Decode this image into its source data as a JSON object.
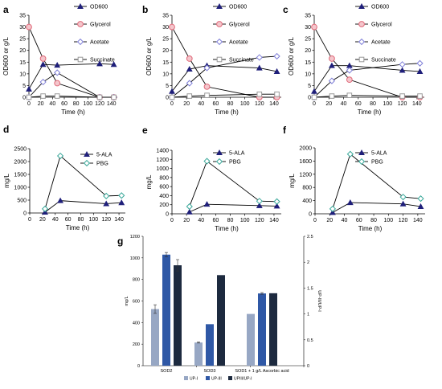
{
  "panel_letters": [
    "a",
    "b",
    "c",
    "d",
    "e",
    "f",
    "g"
  ],
  "colors": {
    "od600": "#1f1f7a",
    "glycerol": "#e06a7a",
    "acetate": "#7f7fd8",
    "succinate": "#9a9a9a",
    "ala": "#1f1f7a",
    "pbg": "#3aa89a",
    "up1": "#97a7c4",
    "up3": "#2f58a6",
    "ratio": "#1d2a3f"
  },
  "chart_data": [
    {
      "id": "a",
      "type": "line",
      "xlabel": "Time (h)",
      "ylabel": "OD600 or g/L",
      "xlim": [
        0,
        150
      ],
      "ylim": [
        0,
        35
      ],
      "xticks": [
        0,
        20,
        40,
        60,
        80,
        100,
        120,
        140
      ],
      "yticks": [
        0,
        5,
        10,
        15,
        20,
        25,
        30,
        35
      ],
      "legend": "right",
      "series": [
        {
          "name": "OD600",
          "marker": "triangle",
          "color_key": "od600",
          "x": [
            0,
            24,
            48,
            120,
            144
          ],
          "y": [
            3.5,
            14,
            13.7,
            14.3,
            14
          ]
        },
        {
          "name": "Glycerol",
          "marker": "circle",
          "color_key": "glycerol",
          "x": [
            0,
            24,
            48,
            120,
            144
          ],
          "y": [
            30,
            16.5,
            6,
            0,
            0
          ]
        },
        {
          "name": "Acetate",
          "marker": "diamond",
          "color_key": "acetate",
          "x": [
            0,
            24,
            48,
            120,
            144
          ],
          "y": [
            0,
            6.5,
            10.5,
            0,
            0
          ]
        },
        {
          "name": "Succinate",
          "marker": "square",
          "color_key": "succinate",
          "x": [
            0,
            24,
            48,
            120,
            144
          ],
          "y": [
            0,
            0.5,
            0.5,
            0,
            0
          ]
        }
      ]
    },
    {
      "id": "b",
      "type": "line",
      "xlabel": "Time (h)",
      "ylabel": "OD600 or g/L",
      "xlim": [
        0,
        150
      ],
      "ylim": [
        0,
        35
      ],
      "xticks": [
        0,
        20,
        40,
        60,
        80,
        100,
        120,
        140
      ],
      "yticks": [
        0,
        5,
        10,
        15,
        20,
        25,
        30,
        35
      ],
      "legend": "right",
      "series": [
        {
          "name": "OD600",
          "marker": "triangle",
          "color_key": "od600",
          "x": [
            0,
            24,
            48,
            120,
            144
          ],
          "y": [
            2.5,
            12,
            13.5,
            12.5,
            11
          ]
        },
        {
          "name": "Glycerol",
          "marker": "circle",
          "color_key": "glycerol",
          "x": [
            0,
            24,
            48,
            120,
            144
          ],
          "y": [
            30,
            16.5,
            4.5,
            0,
            0
          ]
        },
        {
          "name": "Acetate",
          "marker": "diamond",
          "color_key": "acetate",
          "x": [
            0,
            24,
            48,
            120,
            144
          ],
          "y": [
            0,
            6,
            12.5,
            17,
            17.5
          ]
        },
        {
          "name": "Succinate",
          "marker": "square",
          "color_key": "succinate",
          "x": [
            0,
            24,
            48,
            120,
            144
          ],
          "y": [
            0,
            0.5,
            0.8,
            1.3,
            1.3
          ]
        }
      ]
    },
    {
      "id": "c",
      "type": "line",
      "xlabel": "Time (h)",
      "ylabel": "OD600 or g/L",
      "xlim": [
        0,
        150
      ],
      "ylim": [
        0,
        35
      ],
      "xticks": [
        0,
        20,
        40,
        60,
        80,
        100,
        120,
        140
      ],
      "yticks": [
        0,
        5,
        10,
        15,
        20,
        25,
        30,
        35
      ],
      "legend": "right",
      "series": [
        {
          "name": "OD600",
          "marker": "triangle",
          "color_key": "od600",
          "x": [
            0,
            24,
            48,
            120,
            144
          ],
          "y": [
            2.5,
            13.5,
            13.5,
            11.5,
            11
          ]
        },
        {
          "name": "Glycerol",
          "marker": "circle",
          "color_key": "glycerol",
          "x": [
            0,
            24,
            48,
            120,
            144
          ],
          "y": [
            30,
            16.5,
            7.5,
            0,
            0
          ]
        },
        {
          "name": "Acetate",
          "marker": "diamond",
          "color_key": "acetate",
          "x": [
            0,
            24,
            48,
            120,
            144
          ],
          "y": [
            0,
            7,
            11.5,
            14,
            14.5
          ]
        },
        {
          "name": "Succinate",
          "marker": "square",
          "color_key": "succinate",
          "x": [
            0,
            24,
            48,
            120,
            144
          ],
          "y": [
            0,
            0.5,
            0.8,
            0.5,
            0.5
          ]
        }
      ]
    },
    {
      "id": "d",
      "type": "line",
      "xlabel": "Time (h)",
      "ylabel": "mg/L",
      "xlim": [
        0,
        150
      ],
      "ylim": [
        0,
        2500
      ],
      "xticks": [
        0,
        20,
        40,
        60,
        80,
        100,
        120,
        140
      ],
      "yticks": [
        0,
        500,
        1000,
        1500,
        2000,
        2500
      ],
      "legend": "top-right",
      "series": [
        {
          "name": "5-ALA",
          "marker": "triangle",
          "color_key": "ala",
          "x": [
            24,
            48,
            120,
            144
          ],
          "y": [
            30,
            480,
            360,
            400
          ]
        },
        {
          "name": "PBG",
          "marker": "diamond",
          "color_key": "pbg",
          "x": [
            24,
            48,
            120,
            144
          ],
          "y": [
            160,
            2220,
            660,
            680
          ]
        }
      ]
    },
    {
      "id": "e",
      "type": "line",
      "xlabel": "Time (h)",
      "ylabel": "mg/L",
      "xlim": [
        0,
        150
      ],
      "ylim": [
        0,
        1400
      ],
      "xticks": [
        0,
        20,
        40,
        60,
        80,
        100,
        120,
        140
      ],
      "yticks": [
        0,
        200,
        400,
        600,
        800,
        1000,
        1200,
        1400
      ],
      "legend": "top-right",
      "series": [
        {
          "name": "5-ALA",
          "marker": "triangle",
          "color_key": "ala",
          "x": [
            24,
            48,
            120,
            144
          ],
          "y": [
            40,
            210,
            180,
            170
          ]
        },
        {
          "name": "PBG",
          "marker": "diamond",
          "color_key": "pbg",
          "x": [
            24,
            48,
            120,
            144
          ],
          "y": [
            160,
            1160,
            280,
            270
          ]
        }
      ]
    },
    {
      "id": "f",
      "type": "line",
      "xlabel": "Time (h)",
      "ylabel": "mg/L",
      "xlim": [
        0,
        150
      ],
      "ylim": [
        0,
        2000
      ],
      "xticks": [
        0,
        20,
        40,
        60,
        80,
        100,
        120,
        140
      ],
      "yticks": [
        0,
        400,
        800,
        1200,
        1600,
        2000
      ],
      "legend": "top-right",
      "series": [
        {
          "name": "5-ALA",
          "marker": "triangle",
          "color_key": "ala",
          "x": [
            24,
            48,
            120,
            144
          ],
          "y": [
            40,
            340,
            300,
            220
          ]
        },
        {
          "name": "PBG",
          "marker": "diamond",
          "color_key": "pbg",
          "x": [
            24,
            48,
            120,
            144
          ],
          "y": [
            150,
            1810,
            510,
            460
          ]
        }
      ]
    },
    {
      "id": "g",
      "type": "bar",
      "ylabel": "mg/L",
      "y2label": "UP-III/UP-I",
      "ylim": [
        0,
        1200
      ],
      "y2lim": [
        0,
        2.5
      ],
      "yticks": [
        0,
        200,
        400,
        600,
        800,
        1000,
        1200
      ],
      "y2ticks": [
        0,
        0.5,
        1,
        1.5,
        2,
        2.5
      ],
      "categories": [
        "SOD2",
        "SOD3",
        "SOD1 + 1 g/L Ascorbic acid"
      ],
      "legend": "bottom",
      "series": [
        {
          "name": "UP-I",
          "axis": "left",
          "color_key": "up1",
          "values": [
            525,
            215,
            480
          ],
          "errors": [
            40,
            5,
            0
          ]
        },
        {
          "name": "UP-III",
          "axis": "left",
          "color_key": "up3",
          "values": [
            1030,
            385,
            670
          ],
          "errors": [
            20,
            0,
            8
          ]
        },
        {
          "name": "UPIII/UP-I",
          "axis": "right",
          "color_key": "ratio",
          "values": [
            1.94,
            1.75,
            1.4
          ],
          "errors": [
            0.11,
            0,
            0
          ]
        }
      ]
    }
  ]
}
